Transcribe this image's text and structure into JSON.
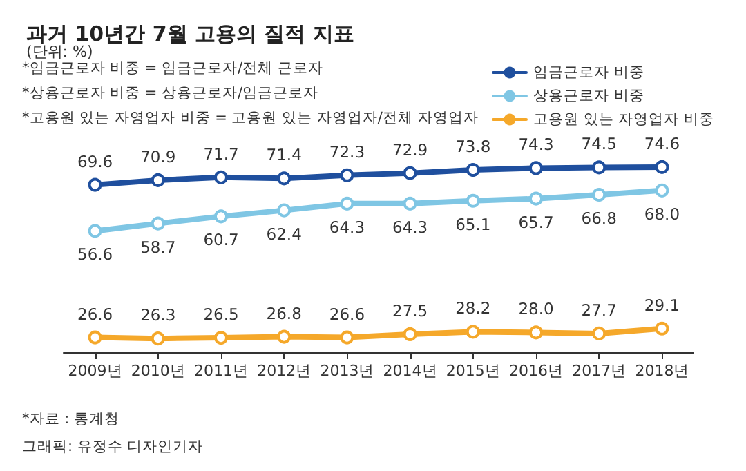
{
  "chart_data": {
    "type": "line",
    "title": "과거 10년간 7월 고용의 질적 지표",
    "subtitle": "(단위: %)",
    "categories": [
      "2009년",
      "2010년",
      "2011년",
      "2012년",
      "2013년",
      "2014년",
      "2015년",
      "2016년",
      "2017년",
      "2018년"
    ],
    "series": [
      {
        "name": "임금근로자 비중",
        "color": "#1f4f9e",
        "values": [
          69.6,
          70.9,
          71.7,
          71.4,
          72.3,
          72.9,
          73.8,
          74.3,
          74.5,
          74.6
        ],
        "value_labels": [
          "69.6",
          "70.9",
          "71.7",
          "71.4",
          "72.3",
          "72.9",
          "73.8",
          "74.3",
          "74.5",
          "74.6"
        ]
      },
      {
        "name": "상용근로자 비중",
        "color": "#7fc6e4",
        "values": [
          56.6,
          58.7,
          60.7,
          62.4,
          64.3,
          64.3,
          65.1,
          65.7,
          66.8,
          68.0
        ],
        "value_labels": [
          "56.6",
          "58.7",
          "60.7",
          "62.4",
          "64.3",
          "64.3",
          "65.1",
          "65.7",
          "66.8",
          "68.0"
        ]
      },
      {
        "name": "고용원 있는 자영업자 비중",
        "color": "#f5a82a",
        "values": [
          26.6,
          26.3,
          26.5,
          26.8,
          26.6,
          27.5,
          28.2,
          28.0,
          27.7,
          29.1
        ],
        "value_labels": [
          "26.6",
          "26.3",
          "26.5",
          "26.8",
          "26.6",
          "27.5",
          "28.2",
          "28.0",
          "27.7",
          "29.1"
        ]
      }
    ],
    "annotations": [
      "*임금근로자 비중 = 임금근로자/전체 근로자",
      "*상용근로자 비중 = 상용근로자/임금근로자",
      "*고용원 있는 자영업자 비중 = 고용원 있는 자영업자/전체 자영업자",
      "*자료 : 통계청",
      "그래픽: 유정수 디자인기자"
    ],
    "legend": "top right",
    "marker": "circle",
    "line_style": "solid",
    "grid": false
  }
}
